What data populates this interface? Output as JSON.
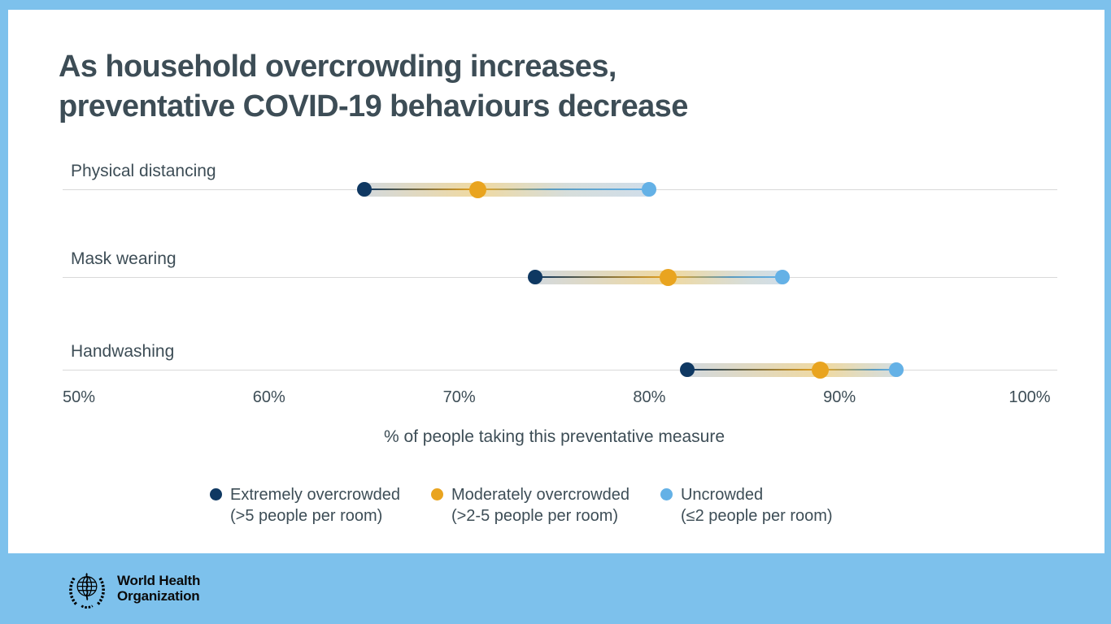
{
  "title": {
    "line1": "As household overcrowding increases,",
    "line2": "preventative COVID-19 behaviours decrease"
  },
  "chart_data": {
    "type": "dumbbell",
    "title": "As household overcrowding increases, preventative COVID-19 behaviours decrease",
    "categories": [
      "Physical distancing",
      "Mask wearing",
      "Handwashing"
    ],
    "series": [
      {
        "name": "Extremely overcrowded (>5 people per room)",
        "color": "#0f3862",
        "values": [
          65,
          74,
          82
        ]
      },
      {
        "name": "Moderately overcrowded (>2-5 people per room)",
        "color": "#e9a41f",
        "values": [
          71,
          81,
          89
        ]
      },
      {
        "name": "Uncrowded (≤2 people per room)",
        "color": "#64b1e6",
        "values": [
          80,
          87,
          93
        ]
      }
    ],
    "xlabel": "% of people taking this preventative measure",
    "x_ticks": [
      "50%",
      "60%",
      "70%",
      "80%",
      "90%",
      "100%"
    ],
    "xlim": [
      50,
      100
    ],
    "grid": "horizontal-category-lines",
    "legend_position": "bottom"
  },
  "legend": {
    "items": [
      {
        "label": "Extremely overcrowded",
        "sublabel": "(>5 people per room)",
        "color": "#0f3862"
      },
      {
        "label": "Moderately overcrowded",
        "sublabel": "(>2-5 people per room)",
        "color": "#e9a41f"
      },
      {
        "label": "Uncrowded",
        "sublabel": "(≤2 people per room)",
        "color": "#64b1e6"
      }
    ]
  },
  "footer": {
    "logo_line1": "World Health",
    "logo_line2": "Organization"
  },
  "colors": {
    "frame": "#7dc1ec",
    "panel": "#ffffff",
    "text": "#3d4d56",
    "gridline": "#d9d9d9"
  }
}
